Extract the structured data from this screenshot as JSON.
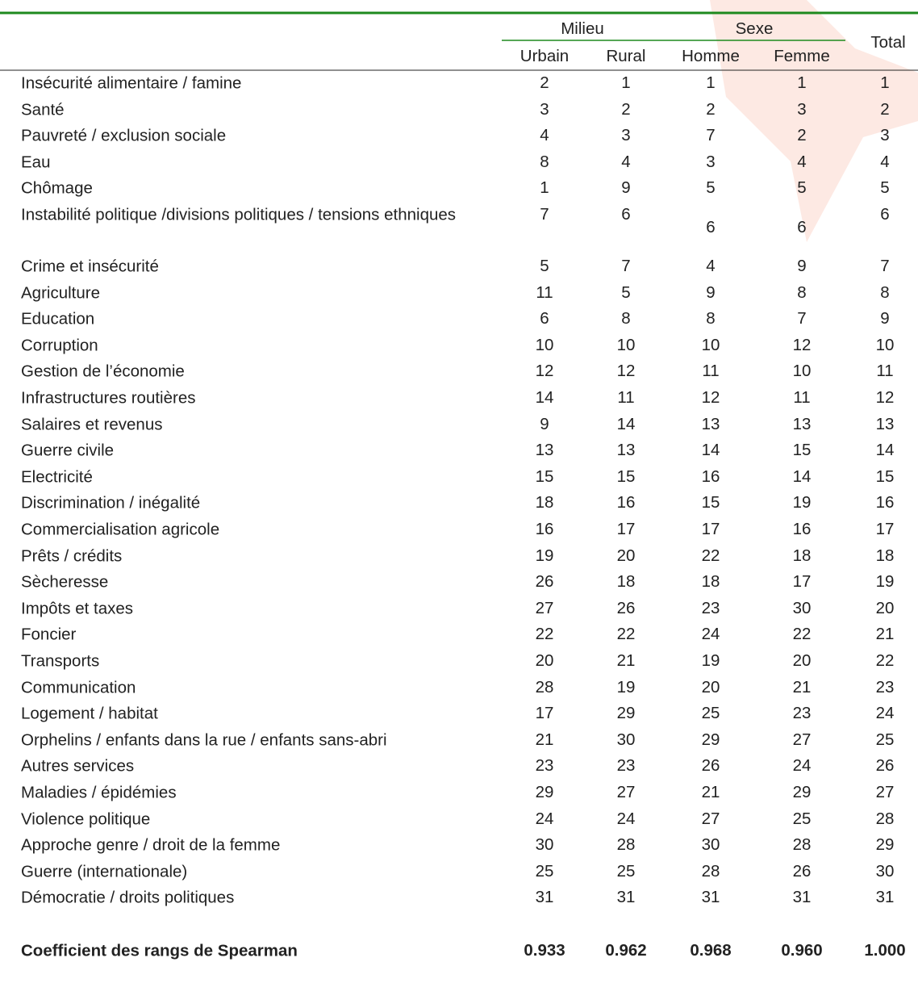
{
  "table": {
    "group_headers": [
      "Milieu",
      "Sexe"
    ],
    "total_header": "Total",
    "columns": [
      "Urbain",
      "Rural",
      "Homme",
      "Femme"
    ],
    "rows": [
      [
        "Insécurité alimentaire / famine",
        2,
        1,
        1,
        1,
        1
      ],
      [
        "Santé",
        3,
        2,
        2,
        3,
        2
      ],
      [
        "Pauvreté / exclusion sociale",
        4,
        3,
        7,
        2,
        3
      ],
      [
        "Eau",
        8,
        4,
        3,
        4,
        4
      ],
      [
        "Chômage",
        1,
        9,
        5,
        5,
        5
      ],
      [
        "Instabilité politique /divisions politiques / tensions ethniques",
        7,
        6,
        6,
        6,
        6
      ],
      [
        "Crime et insécurité",
        5,
        7,
        4,
        9,
        7
      ],
      [
        "Agriculture",
        11,
        5,
        9,
        8,
        8
      ],
      [
        "Education",
        6,
        8,
        8,
        7,
        9
      ],
      [
        "Corruption",
        10,
        10,
        10,
        12,
        10
      ],
      [
        "Gestion de l’économie",
        12,
        12,
        11,
        10,
        11
      ],
      [
        "Infrastructures routières",
        14,
        11,
        12,
        11,
        12
      ],
      [
        "Salaires et revenus",
        9,
        14,
        13,
        13,
        13
      ],
      [
        "Guerre civile",
        13,
        13,
        14,
        15,
        14
      ],
      [
        "Electricité",
        15,
        15,
        16,
        14,
        15
      ],
      [
        "Discrimination / inégalité",
        18,
        16,
        15,
        19,
        16
      ],
      [
        "Commercialisation agricole",
        16,
        17,
        17,
        16,
        17
      ],
      [
        "Prêts / crédits",
        19,
        20,
        22,
        18,
        18
      ],
      [
        "Sècheresse",
        26,
        18,
        18,
        17,
        19
      ],
      [
        "Impôts et taxes",
        27,
        26,
        23,
        30,
        20
      ],
      [
        "Foncier",
        22,
        22,
        24,
        22,
        21
      ],
      [
        "Transports",
        20,
        21,
        19,
        20,
        22
      ],
      [
        "Communication",
        28,
        19,
        20,
        21,
        23
      ],
      [
        "Logement / habitat",
        17,
        29,
        25,
        23,
        24
      ],
      [
        "Orphelins / enfants dans la rue / enfants sans-abri",
        21,
        30,
        29,
        27,
        25
      ],
      [
        "Autres services",
        23,
        23,
        26,
        24,
        26
      ],
      [
        "Maladies / épidémies",
        29,
        27,
        21,
        29,
        27
      ],
      [
        "Violence politique",
        24,
        24,
        27,
        25,
        28
      ],
      [
        "Approche genre / droit de la femme",
        30,
        28,
        30,
        28,
        29
      ],
      [
        "Guerre (internationale)",
        25,
        25,
        28,
        26,
        30
      ],
      [
        "Démocratie / droits politiques",
        31,
        31,
        31,
        31,
        31
      ]
    ],
    "footer": [
      "Coefficient des rangs de Spearman",
      "0.933",
      "0.962",
      "0.968",
      "0.960",
      "1.000"
    ]
  }
}
